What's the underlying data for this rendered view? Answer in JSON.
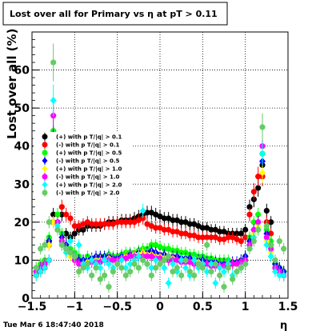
{
  "chart_data": {
    "type": "scatter",
    "title": "Lost over all for Primary vs  η at pT > 0.11",
    "xlabel": "η",
    "ylabel": "Lost over all (%)",
    "xlim": [
      -1.5,
      1.5
    ],
    "ylim": [
      0,
      70
    ],
    "x_ticks": [
      -1.5,
      -1,
      -0.5,
      0,
      0.5,
      1,
      1.5
    ],
    "x_tick_labels": [
      "−1.5",
      "−1",
      "−0.5",
      "0",
      "0.5",
      "1",
      "1.5"
    ],
    "y_ticks": [
      0,
      10,
      20,
      30,
      40,
      50,
      60
    ],
    "y_tick_labels": [
      "0",
      "10",
      "20",
      "30",
      "40",
      "50",
      "60"
    ],
    "grid": true,
    "legend_position": "middle-left",
    "series": [
      {
        "name": "(+) with p T/|q| > 0.1",
        "color": "#000000",
        "marker": "circle",
        "x": [
          -1.45,
          -1.4,
          -1.35,
          -1.3,
          -1.25,
          -1.2,
          -1.15,
          -1.1,
          -1.05,
          -1.0,
          -0.95,
          -0.9,
          -0.85,
          -0.8,
          -0.75,
          -0.7,
          -0.65,
          -0.6,
          -0.55,
          -0.5,
          -0.45,
          -0.4,
          -0.35,
          -0.3,
          -0.25,
          -0.2,
          -0.15,
          -0.1,
          -0.05,
          0.0,
          0.05,
          0.1,
          0.15,
          0.2,
          0.25,
          0.3,
          0.35,
          0.4,
          0.45,
          0.5,
          0.55,
          0.6,
          0.65,
          0.7,
          0.75,
          0.8,
          0.85,
          0.9,
          0.95,
          1.0,
          1.05,
          1.1,
          1.15,
          1.2,
          1.25,
          1.3,
          1.35,
          1.4,
          1.45
        ],
        "y": [
          7,
          8,
          9,
          15,
          22,
          18,
          22,
          17,
          16,
          17,
          18,
          18,
          19,
          19,
          19,
          19,
          19.5,
          20,
          20,
          20,
          20.5,
          20.5,
          20.5,
          21,
          21.5,
          22,
          22.5,
          22.5,
          22,
          21.5,
          21,
          21,
          20.5,
          20.5,
          20,
          20,
          19.5,
          19.5,
          19,
          18.5,
          18.5,
          18,
          18,
          17.5,
          17.5,
          17,
          17,
          17,
          17,
          18,
          24,
          26,
          29,
          35,
          23,
          20,
          9,
          8,
          7
        ]
      },
      {
        "name": "(-) with p T/|q| > 0.1",
        "color": "#ff0000",
        "marker": "circle",
        "x": [
          -1.45,
          -1.4,
          -1.35,
          -1.3,
          -1.25,
          -1.2,
          -1.15,
          -1.1,
          -1.05,
          -1.0,
          -0.95,
          -0.9,
          -0.85,
          -0.8,
          -0.75,
          -0.7,
          -0.65,
          -0.6,
          -0.55,
          -0.5,
          -0.45,
          -0.4,
          -0.35,
          -0.3,
          -0.25,
          -0.2,
          -0.15,
          -0.1,
          -0.05,
          0.0,
          0.05,
          0.1,
          0.15,
          0.2,
          0.25,
          0.3,
          0.35,
          0.4,
          0.45,
          0.5,
          0.55,
          0.6,
          0.65,
          0.7,
          0.75,
          0.8,
          0.85,
          0.9,
          0.95,
          1.0,
          1.05,
          1.1,
          1.15,
          1.2,
          1.25,
          1.3,
          1.35,
          1.4,
          1.45
        ],
        "y": [
          6,
          7,
          8,
          14,
          20,
          20,
          24,
          22,
          21,
          19,
          19,
          19.5,
          20,
          19.5,
          19.5,
          19.5,
          19.5,
          19.5,
          19.5,
          20,
          20,
          20,
          20,
          20,
          20.5,
          21,
          19.5,
          19,
          18.5,
          18.5,
          18,
          18,
          17.5,
          17.5,
          17,
          17,
          16.5,
          16.5,
          16,
          16,
          16,
          16,
          16,
          15.5,
          15.5,
          16,
          16,
          15.5,
          15,
          16,
          22,
          28,
          32,
          32,
          20,
          17,
          8,
          7,
          6
        ]
      },
      {
        "name": "(+) with p T/|q| > 0.5",
        "color": "#00ff00",
        "marker": "circle",
        "x": [
          -1.45,
          -1.4,
          -1.35,
          -1.3,
          -1.25,
          -1.2,
          -1.15,
          -1.1,
          -1.05,
          -1.0,
          -0.95,
          -0.9,
          -0.85,
          -0.8,
          -0.75,
          -0.7,
          -0.65,
          -0.6,
          -0.55,
          -0.5,
          -0.45,
          -0.4,
          -0.35,
          -0.3,
          -0.25,
          -0.2,
          -0.15,
          -0.1,
          -0.05,
          0.0,
          0.05,
          0.1,
          0.15,
          0.2,
          0.25,
          0.3,
          0.35,
          0.4,
          0.45,
          0.5,
          0.55,
          0.6,
          0.65,
          0.7,
          0.75,
          0.8,
          0.85,
          0.9,
          0.95,
          1.0,
          1.05,
          1.1,
          1.15,
          1.2,
          1.25,
          1.3,
          1.35,
          1.4,
          1.45
        ],
        "y": [
          8,
          9,
          10,
          16,
          44,
          22,
          17,
          14,
          13,
          12,
          11,
          10,
          11,
          10,
          10,
          11,
          11,
          11.5,
          11,
          11,
          11.5,
          12,
          12,
          12,
          12.5,
          13,
          13,
          14,
          14,
          13.5,
          13,
          13,
          12.5,
          12.5,
          12,
          12,
          11.5,
          11.5,
          11,
          11,
          10.5,
          10.5,
          10,
          10,
          10,
          10,
          9.5,
          9.5,
          10,
          11,
          16,
          20,
          22,
          38,
          18,
          15,
          9,
          8,
          7
        ]
      },
      {
        "name": "(-) with p T/|q| > 0.5",
        "color": "#0000ff",
        "marker": "diamond",
        "x": [
          -1.45,
          -1.4,
          -1.35,
          -1.3,
          -1.25,
          -1.2,
          -1.15,
          -1.1,
          -1.05,
          -1.0,
          -0.95,
          -0.9,
          -0.85,
          -0.8,
          -0.75,
          -0.7,
          -0.65,
          -0.6,
          -0.55,
          -0.5,
          -0.45,
          -0.4,
          -0.35,
          -0.3,
          -0.25,
          -0.2,
          -0.15,
          -0.1,
          -0.05,
          0.0,
          0.05,
          0.1,
          0.15,
          0.2,
          0.25,
          0.3,
          0.35,
          0.4,
          0.45,
          0.5,
          0.55,
          0.6,
          0.65,
          0.7,
          0.75,
          0.8,
          0.85,
          0.9,
          0.95,
          1.0,
          1.05,
          1.1,
          1.15,
          1.2,
          1.25,
          1.3,
          1.35,
          1.4,
          1.45
        ],
        "y": [
          7,
          8,
          9,
          15,
          42,
          20,
          16,
          14,
          12,
          11,
          10,
          10,
          10,
          10.5,
          11,
          11,
          11,
          11,
          10.5,
          10.5,
          11,
          11,
          11.5,
          11.5,
          12,
          12,
          12,
          12.5,
          12,
          11.5,
          11.5,
          11,
          11,
          11,
          10.5,
          10.5,
          10.5,
          10,
          10,
          10,
          9.5,
          9.5,
          9.5,
          9,
          9,
          9,
          9.5,
          9.5,
          10,
          11,
          15,
          18,
          20,
          36,
          17,
          14,
          9,
          8,
          7
        ]
      },
      {
        "name": "(+) with p T/|q| > 1.0",
        "color": "#ffff00",
        "marker": "diamond",
        "x": [
          -1.45,
          -1.4,
          -1.35,
          -1.3,
          -1.25,
          -1.2,
          -1.15,
          -1.1,
          -1.05,
          -1.0,
          -0.95,
          -0.9,
          -0.85,
          -0.8,
          -0.75,
          -0.7,
          -0.65,
          -0.6,
          -0.55,
          -0.5,
          -0.45,
          -0.4,
          -0.35,
          -0.3,
          -0.25,
          -0.2,
          -0.15,
          -0.1,
          -0.05,
          0.0,
          0.05,
          0.1,
          0.15,
          0.2,
          0.25,
          0.3,
          0.35,
          0.4,
          0.45,
          0.5,
          0.55,
          0.6,
          0.65,
          0.7,
          0.75,
          0.8,
          0.85,
          0.9,
          0.95,
          1.0,
          1.05,
          1.1,
          1.15,
          1.2,
          1.25,
          1.3,
          1.35,
          1.4,
          1.45
        ],
        "y": [
          6,
          7,
          9,
          14,
          20,
          18,
          15,
          12,
          11,
          10,
          9,
          9,
          9.5,
          10,
          10,
          10,
          10,
          10.5,
          10,
          10,
          10.5,
          11,
          11,
          11.5,
          11.5,
          12,
          11.5,
          11.5,
          11,
          11,
          10.5,
          10.5,
          10.5,
          10,
          10,
          10,
          9.5,
          9.5,
          9.5,
          9,
          9,
          9,
          9,
          8.5,
          8.5,
          8.5,
          9,
          9,
          9.5,
          10,
          14,
          17,
          19,
          33,
          15,
          12,
          8,
          7,
          6
        ]
      },
      {
        "name": "(-) with p T/|q| > 1.0",
        "color": "#ff00ff",
        "marker": "circle",
        "x": [
          -1.45,
          -1.4,
          -1.35,
          -1.3,
          -1.25,
          -1.2,
          -1.15,
          -1.1,
          -1.05,
          -1.0,
          -0.95,
          -0.9,
          -0.85,
          -0.8,
          -0.75,
          -0.7,
          -0.65,
          -0.6,
          -0.55,
          -0.5,
          -0.45,
          -0.4,
          -0.35,
          -0.3,
          -0.25,
          -0.2,
          -0.15,
          -0.1,
          -0.05,
          0.0,
          0.05,
          0.1,
          0.15,
          0.2,
          0.25,
          0.3,
          0.35,
          0.4,
          0.45,
          0.5,
          0.55,
          0.6,
          0.65,
          0.7,
          0.75,
          0.8,
          0.85,
          0.9,
          0.95,
          1.0,
          1.05,
          1.1,
          1.15,
          1.2,
          1.25,
          1.3,
          1.35,
          1.4,
          1.45
        ],
        "y": [
          7,
          8,
          9,
          10,
          48,
          20,
          15,
          13,
          12,
          10,
          9,
          9,
          9,
          9.5,
          9.5,
          9.5,
          10,
          10,
          10,
          10,
          10.5,
          10.5,
          11,
          11,
          11,
          11,
          11,
          11,
          10.5,
          10.5,
          10,
          10,
          10,
          10,
          9.5,
          9.5,
          9.5,
          9,
          9,
          9,
          9,
          8.5,
          8.5,
          8.5,
          8.5,
          8.5,
          9,
          9,
          9.5,
          10,
          14,
          18,
          20,
          40,
          16,
          13,
          8,
          7,
          6
        ]
      },
      {
        "name": "(+) with p T/|q| > 2.0",
        "color": "#00ffff",
        "marker": "diamond",
        "x": [
          -1.45,
          -1.4,
          -1.35,
          -1.3,
          -1.25,
          -1.2,
          -1.15,
          -1.1,
          -1.05,
          -1.0,
          -0.95,
          -0.9,
          -0.85,
          -0.8,
          -0.75,
          -0.7,
          -0.65,
          -0.6,
          -0.55,
          -0.5,
          -0.45,
          -0.4,
          -0.35,
          -0.3,
          -0.25,
          -0.2,
          -0.15,
          -0.1,
          -0.05,
          0.0,
          0.05,
          0.1,
          0.15,
          0.2,
          0.25,
          0.3,
          0.35,
          0.4,
          0.45,
          0.5,
          0.55,
          0.6,
          0.65,
          0.7,
          0.75,
          0.8,
          0.85,
          0.9,
          0.95,
          1.0,
          1.05,
          1.1,
          1.15,
          1.2,
          1.25,
          1.3,
          1.35,
          1.4,
          1.45
        ],
        "y": [
          6,
          7,
          8,
          10,
          52,
          19,
          14,
          12,
          15,
          11,
          14,
          9,
          8,
          10,
          9,
          8,
          10,
          9,
          8,
          9,
          10,
          8,
          9,
          10,
          11,
          23,
          9,
          8,
          10,
          9,
          8,
          4,
          9,
          7,
          10,
          8,
          6,
          10,
          8,
          9,
          7,
          9,
          4,
          8,
          7,
          9,
          6,
          7,
          8,
          9,
          13,
          16,
          18,
          38,
          14,
          11,
          7,
          6,
          6
        ]
      },
      {
        "name": "(-) with p T/|q| > 2.0",
        "color": "#66cc66",
        "marker": "circle",
        "x": [
          -1.45,
          -1.4,
          -1.35,
          -1.3,
          -1.25,
          -1.2,
          -1.15,
          -1.1,
          -1.05,
          -1.0,
          -0.95,
          -0.9,
          -0.85,
          -0.8,
          -0.75,
          -0.7,
          -0.65,
          -0.6,
          -0.55,
          -0.5,
          -0.45,
          -0.4,
          -0.35,
          -0.3,
          -0.25,
          -0.2,
          -0.15,
          -0.1,
          -0.05,
          0.0,
          0.05,
          0.1,
          0.15,
          0.2,
          0.25,
          0.3,
          0.35,
          0.4,
          0.45,
          0.5,
          0.55,
          0.6,
          0.65,
          0.7,
          0.75,
          0.8,
          0.85,
          0.9,
          0.95,
          1.0,
          1.05,
          1.1,
          1.15,
          1.2,
          1.25,
          1.3,
          1.35,
          1.4,
          1.45
        ],
        "y": [
          8,
          13,
          14,
          20,
          62,
          18,
          14,
          13,
          12,
          11,
          7,
          8,
          9,
          6,
          8,
          5,
          6,
          3,
          7,
          9,
          8,
          6,
          7,
          9,
          8,
          10,
          9,
          6,
          8,
          9,
          10,
          11,
          7,
          8,
          6,
          10,
          7,
          6,
          9,
          8,
          14,
          7,
          9,
          6,
          3,
          8,
          5,
          7,
          8,
          9,
          13,
          15,
          18,
          45,
          19,
          14,
          10,
          15,
          13
        ]
      }
    ]
  },
  "footer": {
    "timestamp": "Tue Mar  6 18:47:40 2018"
  }
}
